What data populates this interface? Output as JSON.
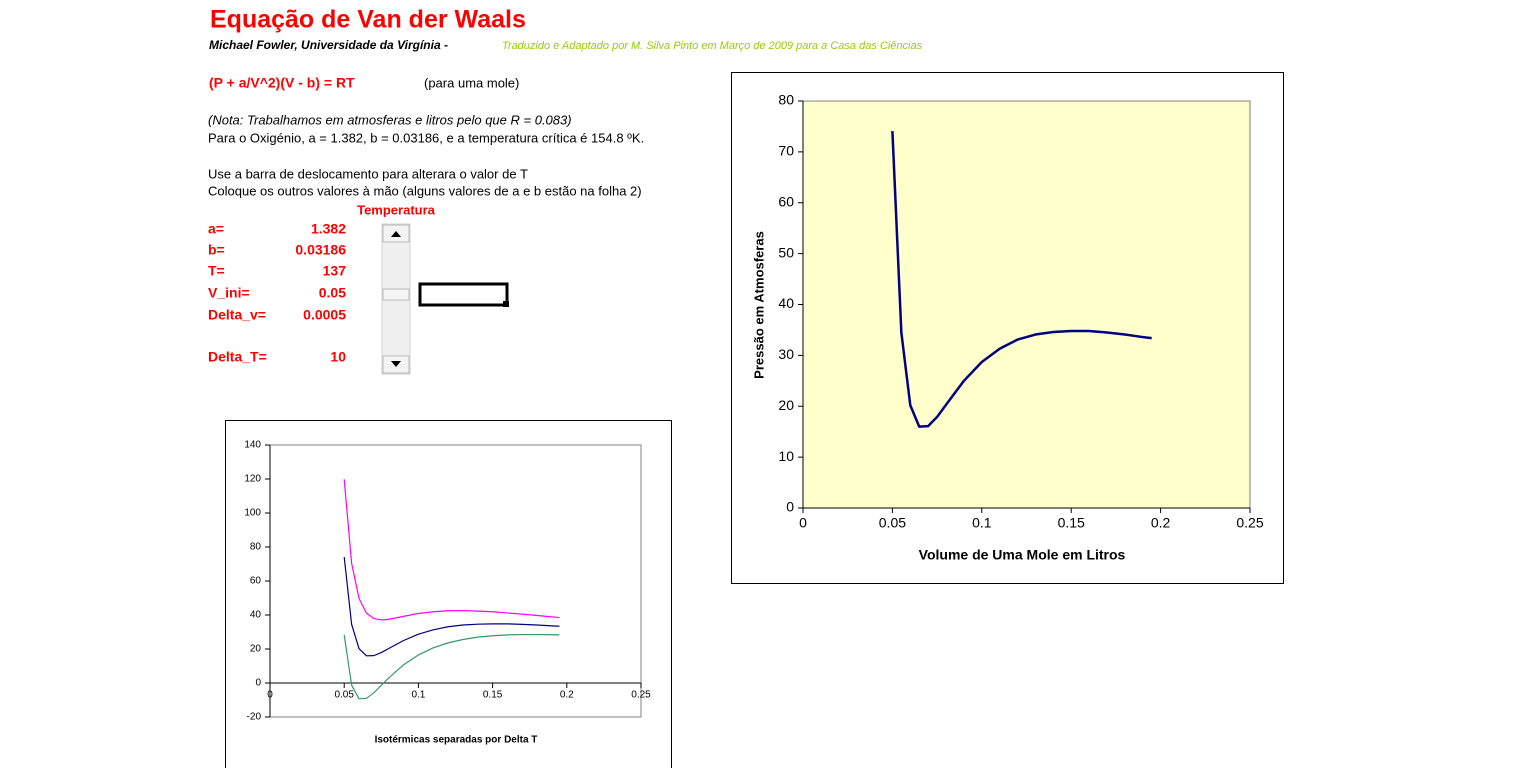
{
  "header": {
    "title": "Equação de Van der Waals",
    "author": "Michael Fowler, Universidade da Virgínia -",
    "translation": "Traduzido e Adaptado por M. Silva Pinto em Março de 2009 para a Casa das Ciências"
  },
  "equation": {
    "formula": "(P + a/V^2)(V - b) = RT",
    "note": "(para uma mole)"
  },
  "notes": [
    "(Nota: Trabalhamos em atmosferas e litros pelo que R = 0.083)",
    "Para o Oxigénio, a = 1.382, b = 0.03186, e a temperatura crítica é 154.8 ºK.",
    "Use a barra de deslocamento para alterara o valor de T",
    "Coloque os outros valores à mão (alguns valores de a e b estão na folha 2)"
  ],
  "parameters": {
    "heading": "Temperatura",
    "rows": [
      [
        "a=",
        1.382
      ],
      [
        "b=",
        0.03186
      ],
      [
        "T=",
        137
      ],
      [
        "V_ini=",
        0.05
      ],
      [
        "Delta_v=",
        0.0005
      ],
      [
        "Delta_T=",
        10
      ]
    ]
  },
  "chart_data": [
    {
      "type": "line",
      "x_label": "Volume de Uma Mole em Litros",
      "y_label": "Pressão em Atmosferas",
      "x": [
        0.05,
        0.055,
        0.06,
        0.065,
        0.07,
        0.075,
        0.08,
        0.09,
        0.1,
        0.11,
        0.12,
        0.13,
        0.14,
        0.15,
        0.16,
        0.17,
        0.18,
        0.19,
        0.195
      ],
      "series": [
        {
          "color": "#000080",
          "values": [
            74.1,
            34.5,
            20.2,
            16.0,
            16.1,
            17.9,
            20.3,
            25.0,
            28.7,
            31.3,
            33.1,
            34.1,
            34.6,
            34.8,
            34.8,
            34.5,
            34.1,
            33.6,
            33.4
          ]
        }
      ],
      "xlim": [
        0,
        0.25
      ],
      "xticks": [
        0,
        0.05,
        0.1,
        0.15,
        0.2,
        0.25
      ],
      "ylim": [
        0,
        80
      ],
      "yticks": [
        0,
        10,
        20,
        30,
        40,
        50,
        60,
        70,
        80
      ],
      "plot_background": "#ffffcc"
    },
    {
      "type": "line",
      "x_label": "Isotérmicas separadas por Delta T",
      "x": [
        0.05,
        0.055,
        0.06,
        0.065,
        0.07,
        0.075,
        0.08,
        0.09,
        0.1,
        0.11,
        0.12,
        0.13,
        0.14,
        0.15,
        0.16,
        0.17,
        0.18,
        0.19,
        0.195
      ],
      "series": [
        {
          "color": "#ff00ff",
          "values": [
            119.8,
            70.4,
            49.7,
            41.1,
            37.9,
            37.1,
            37.5,
            39.2,
            40.9,
            41.9,
            42.5,
            42.6,
            42.3,
            41.9,
            41.2,
            40.5,
            39.7,
            38.9,
            38.5
          ]
        },
        {
          "color": "#000080",
          "values": [
            74.1,
            34.5,
            20.2,
            16.0,
            16.1,
            17.9,
            20.3,
            25.0,
            28.7,
            31.3,
            33.1,
            34.1,
            34.6,
            34.8,
            34.8,
            34.5,
            34.1,
            33.6,
            33.4
          ]
        },
        {
          "color": "#339966",
          "values": [
            28.3,
            -1.3,
            -9.3,
            -9.0,
            -5.7,
            -1.4,
            3.0,
            10.7,
            16.5,
            20.7,
            23.6,
            25.6,
            27.0,
            27.8,
            28.3,
            28.5,
            28.5,
            28.4,
            28.3
          ]
        }
      ],
      "xlim": [
        0,
        0.25
      ],
      "xticks": [
        0,
        0.05,
        0.1,
        0.15,
        0.2,
        0.25
      ],
      "ylim": [
        -20,
        140
      ],
      "yticks": [
        -20,
        0,
        20,
        40,
        60,
        80,
        100,
        120,
        140
      ],
      "plot_background": "#ffffff"
    }
  ]
}
